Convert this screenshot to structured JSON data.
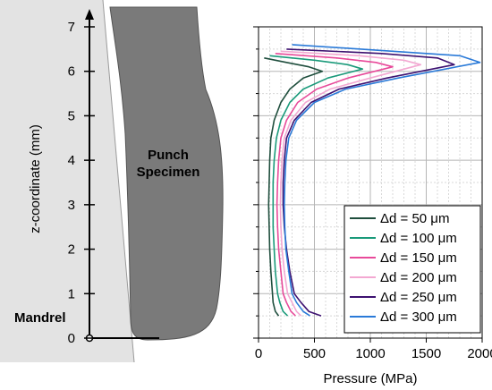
{
  "schematic": {
    "mandrel_label": "Mandrel",
    "specimen_label_line1": "Punch",
    "specimen_label_line2": "Specimen",
    "z_axis_label": "z-coordinate (mm)",
    "z_ticks": [
      "0",
      "1",
      "2",
      "3",
      "4",
      "5",
      "6",
      "7"
    ],
    "colors": {
      "mandrel": "#e3e3e3",
      "specimen": "#7a7a7a"
    }
  },
  "chart_data": {
    "type": "line",
    "xlabel": "Pressure (MPa)",
    "ylabel": "",
    "xlim": [
      0,
      2000
    ],
    "ylim": [
      0,
      7
    ],
    "x_ticks": [
      "0",
      "500",
      "1000",
      "1500",
      "2000"
    ],
    "grid": true,
    "legend_position": "bottom-right",
    "series": [
      {
        "name": "Δd = 50 μm",
        "color": "#1f4e3d",
        "points": [
          [
            180,
            0.5
          ],
          [
            150,
            0.6
          ],
          [
            130,
            0.8
          ],
          [
            125,
            1.0
          ],
          [
            110,
            1.5
          ],
          [
            100,
            2.0
          ],
          [
            95,
            2.5
          ],
          [
            90,
            3.0
          ],
          [
            95,
            3.5
          ],
          [
            100,
            4.0
          ],
          [
            110,
            4.5
          ],
          [
            140,
            4.9
          ],
          [
            200,
            5.3
          ],
          [
            280,
            5.6
          ],
          [
            400,
            5.85
          ],
          [
            570,
            6.0
          ],
          [
            450,
            6.1
          ],
          [
            250,
            6.2
          ],
          [
            50,
            6.3
          ]
        ]
      },
      {
        "name": "Δd = 100 μm",
        "color": "#1a9a7a",
        "points": [
          [
            260,
            0.5
          ],
          [
            220,
            0.6
          ],
          [
            190,
            0.8
          ],
          [
            170,
            1.0
          ],
          [
            150,
            1.5
          ],
          [
            140,
            2.0
          ],
          [
            130,
            2.5
          ],
          [
            130,
            3.0
          ],
          [
            130,
            3.5
          ],
          [
            140,
            4.0
          ],
          [
            160,
            4.5
          ],
          [
            200,
            4.9
          ],
          [
            280,
            5.3
          ],
          [
            400,
            5.6
          ],
          [
            620,
            5.85
          ],
          [
            930,
            6.05
          ],
          [
            800,
            6.15
          ],
          [
            500,
            6.25
          ],
          [
            100,
            6.35
          ]
        ]
      },
      {
        "name": "Δd = 150 μm",
        "color": "#e84a9a",
        "points": [
          [
            330,
            0.5
          ],
          [
            290,
            0.6
          ],
          [
            250,
            0.8
          ],
          [
            220,
            1.0
          ],
          [
            200,
            1.5
          ],
          [
            180,
            2.0
          ],
          [
            170,
            2.5
          ],
          [
            165,
            3.0
          ],
          [
            170,
            3.5
          ],
          [
            180,
            4.0
          ],
          [
            200,
            4.5
          ],
          [
            250,
            4.9
          ],
          [
            350,
            5.3
          ],
          [
            520,
            5.6
          ],
          [
            800,
            5.85
          ],
          [
            1200,
            6.1
          ],
          [
            1050,
            6.2
          ],
          [
            700,
            6.3
          ],
          [
            150,
            6.4
          ]
        ]
      },
      {
        "name": "Δd = 200 μm",
        "color": "#f3a8d2",
        "points": [
          [
            380,
            0.5
          ],
          [
            340,
            0.6
          ],
          [
            300,
            0.8
          ],
          [
            260,
            1.0
          ],
          [
            230,
            1.5
          ],
          [
            210,
            2.0
          ],
          [
            200,
            2.5
          ],
          [
            195,
            3.0
          ],
          [
            200,
            3.5
          ],
          [
            210,
            4.0
          ],
          [
            230,
            4.5
          ],
          [
            290,
            4.9
          ],
          [
            420,
            5.3
          ],
          [
            640,
            5.6
          ],
          [
            1000,
            5.85
          ],
          [
            1450,
            6.15
          ],
          [
            1300,
            6.25
          ],
          [
            900,
            6.35
          ],
          [
            200,
            6.45
          ]
        ]
      },
      {
        "name": "Δd = 250 μm",
        "color": "#3d1170",
        "points": [
          [
            560,
            0.5
          ],
          [
            450,
            0.6
          ],
          [
            380,
            0.8
          ],
          [
            320,
            1.0
          ],
          [
            280,
            1.5
          ],
          [
            250,
            2.0
          ],
          [
            230,
            2.5
          ],
          [
            220,
            3.0
          ],
          [
            220,
            3.5
          ],
          [
            230,
            4.0
          ],
          [
            250,
            4.5
          ],
          [
            320,
            4.9
          ],
          [
            470,
            5.3
          ],
          [
            720,
            5.6
          ],
          [
            1150,
            5.85
          ],
          [
            1750,
            6.15
          ],
          [
            1600,
            6.3
          ],
          [
            1100,
            6.4
          ],
          [
            250,
            6.5
          ]
        ]
      },
      {
        "name": "Δd = 300 μm",
        "color": "#2a7ad8",
        "points": [
          [
            460,
            0.5
          ],
          [
            400,
            0.6
          ],
          [
            340,
            0.8
          ],
          [
            300,
            1.0
          ],
          [
            270,
            1.5
          ],
          [
            245,
            2.0
          ],
          [
            235,
            2.5
          ],
          [
            230,
            3.0
          ],
          [
            235,
            3.5
          ],
          [
            245,
            4.0
          ],
          [
            270,
            4.5
          ],
          [
            340,
            4.9
          ],
          [
            500,
            5.3
          ],
          [
            780,
            5.6
          ],
          [
            1250,
            5.85
          ],
          [
            1980,
            6.2
          ],
          [
            1800,
            6.35
          ],
          [
            1200,
            6.45
          ],
          [
            300,
            6.6
          ]
        ]
      }
    ]
  }
}
